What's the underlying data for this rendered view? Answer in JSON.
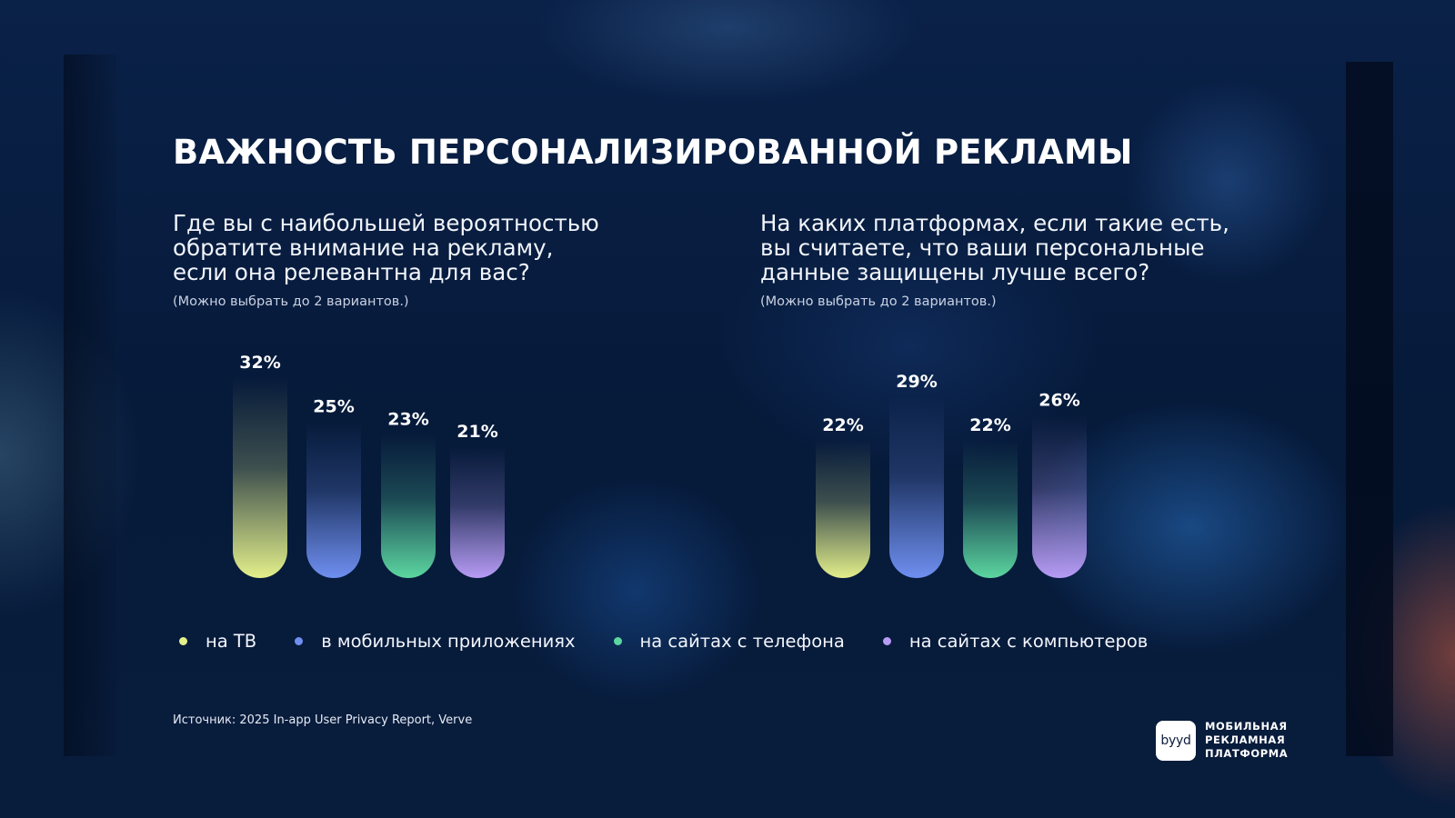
{
  "title": "ВАЖНОСТЬ ПЕРСОНАЛИЗИРОВАННОЙ РЕКЛАМЫ",
  "left_question": {
    "lines": [
      "Где вы с наибольшей вероятностью",
      "обратите внимание на рекламу,",
      "если она релевантна для вас?"
    ],
    "note": "(Можно выбрать до 2 вариантов.)"
  },
  "right_question": {
    "lines": [
      "На каких платформах, если такие есть,",
      "вы считаете, что ваши персональные",
      "данные защищены лучше всего?"
    ],
    "note": "(Можно выбрать до 2 вариантов.)"
  },
  "legend": [
    {
      "label": "на ТВ",
      "color": "#e3ef8a"
    },
    {
      "label": "в мобильных приложениях",
      "color": "#6f8ff0"
    },
    {
      "label": "на сайтах с телефона",
      "color": "#5cd6a0"
    },
    {
      "label": "на сайтах с компьютеров",
      "color": "#b79cf5"
    }
  ],
  "source": "Источник: 2025 In-app User Privacy Report, Verve",
  "brand": {
    "logo": "byyd",
    "lines": [
      "МОБИЛЬНАЯ",
      "РЕКЛАМНАЯ",
      "ПЛАТФОРМА"
    ]
  },
  "chart_data": [
    {
      "type": "bar",
      "categories": [
        "на ТВ",
        "в мобильных приложениях",
        "на сайтах с телефона",
        "на сайтах с компьютеров"
      ],
      "values": [
        32,
        25,
        23,
        21
      ],
      "labels": [
        "32%",
        "25%",
        "23%",
        "21%"
      ],
      "colors": [
        "#e3ef8a",
        "#6f8ff0",
        "#5cd6a0",
        "#b79cf5"
      ],
      "unit": "%"
    },
    {
      "type": "bar",
      "categories": [
        "на ТВ",
        "в мобильных приложениях",
        "на сайтах с телефона",
        "на сайтах с компьютеров"
      ],
      "values": [
        22,
        29,
        22,
        26
      ],
      "labels": [
        "22%",
        "29%",
        "22%",
        "26%"
      ],
      "colors": [
        "#e3ef8a",
        "#6f8ff0",
        "#5cd6a0",
        "#b79cf5"
      ],
      "unit": "%"
    }
  ]
}
